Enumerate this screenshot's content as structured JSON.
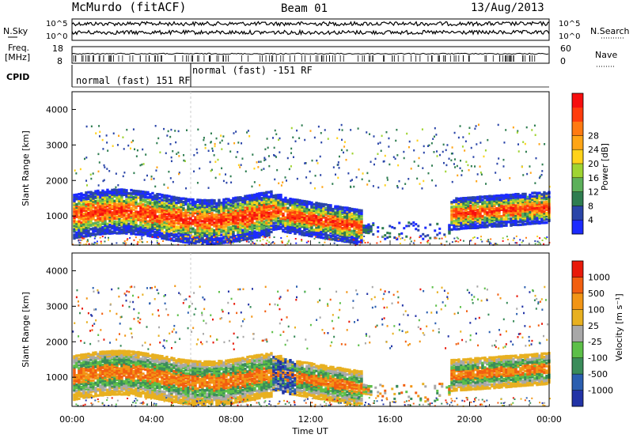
{
  "header": {
    "station": "McMurdo (fitACF)",
    "beam": "Beam 01",
    "date": "13/Aug/2013"
  },
  "aux_panels": {
    "nsky_label": "N.Sky",
    "nsky_ticks": [
      "10^5",
      "10^0"
    ],
    "nsearch_label": "N.Search",
    "nsearch_ticks": [
      "10^5",
      "10^0"
    ],
    "freq_label_1": "Freq.",
    "freq_label_2": "[MHz]",
    "freq_ticks": [
      "18",
      "8"
    ],
    "nave_label": "Nave",
    "nave_ticks": [
      "60",
      "0"
    ],
    "cpid_label": "CPID",
    "cpid_segments": [
      {
        "label": "normal (fast) 151 RF",
        "start_hour": 0,
        "end_hour": 6
      },
      {
        "label": "normal (fast) -151 RF",
        "start_hour": 6,
        "end_hour": 24
      }
    ]
  },
  "chart_data": [
    {
      "type": "heatmap",
      "title": "",
      "xlabel": "",
      "ylabel": "Slant Range [km]",
      "xlim": [
        0,
        24
      ],
      "ylim": [
        180,
        4500
      ],
      "yticks": [
        "1000",
        "2000",
        "3000",
        "4000"
      ],
      "colorbar_label": "Power [dB]",
      "colorbar_ticks": [
        "4",
        "8",
        "12",
        "16",
        "20",
        "24",
        "28"
      ],
      "colorbar_colors": [
        "#1c2bff",
        "#2a45a8",
        "#2e7d50",
        "#5cb05a",
        "#9fd431",
        "#ffd21a",
        "#ffa516",
        "#ff7a12",
        "#ff3c0c",
        "#f70e0e"
      ]
    },
    {
      "type": "heatmap",
      "title": "",
      "xlabel": "Time UT",
      "ylabel": "Slant Range [km]",
      "xlim": [
        0,
        24
      ],
      "ylim": [
        180,
        4500
      ],
      "yticks": [
        "1000",
        "2000",
        "3000",
        "4000"
      ],
      "xticks": [
        "00:00",
        "04:00",
        "08:00",
        "12:00",
        "16:00",
        "20:00",
        "00:00"
      ],
      "colorbar_label": "Velocity [m s⁻¹]",
      "colorbar_ticks": [
        "1000",
        "500",
        "100",
        "25",
        "-25",
        "-100",
        "-500",
        "-1000"
      ],
      "colorbar_colors": [
        "#2233a6",
        "#2b5fb0",
        "#3a8c5a",
        "#5cbf48",
        "#a8a8a8",
        "#e8b020",
        "#f29515",
        "#f25f10",
        "#e81a0a"
      ]
    }
  ]
}
